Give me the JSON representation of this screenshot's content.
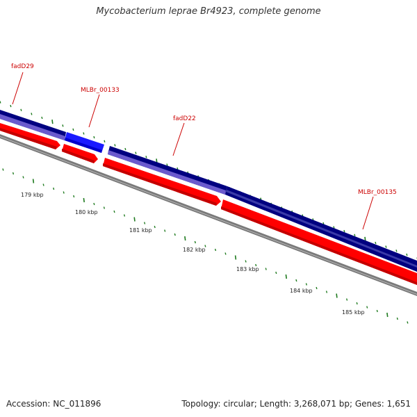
{
  "title": "Mycobacterium leprae Br4923, complete genome",
  "footer": {
    "accession": "Accession: NC_011896",
    "summary": "Topology: circular; Length: 3,268,071 bp; Genes: 1,651"
  },
  "gene_labels": [
    {
      "name": "fadD29"
    },
    {
      "name": "MLBr_00133"
    },
    {
      "name": "fadD22"
    },
    {
      "name": "MLBr_00135"
    }
  ],
  "kbp_labels": [
    "179 kbp",
    "180 kbp",
    "181 kbp",
    "182 kbp",
    "183 kbp",
    "184 kbp",
    "185 kbp"
  ],
  "colors": {
    "label_red": "#cc0000",
    "gene_navy": "#000080",
    "gene_lavender": "#6a5acd",
    "gene_blue": "#1a1aff",
    "cds_red": "#ff0000",
    "backbone_gray": "#888888",
    "tick_green": "#1e7a1e"
  }
}
